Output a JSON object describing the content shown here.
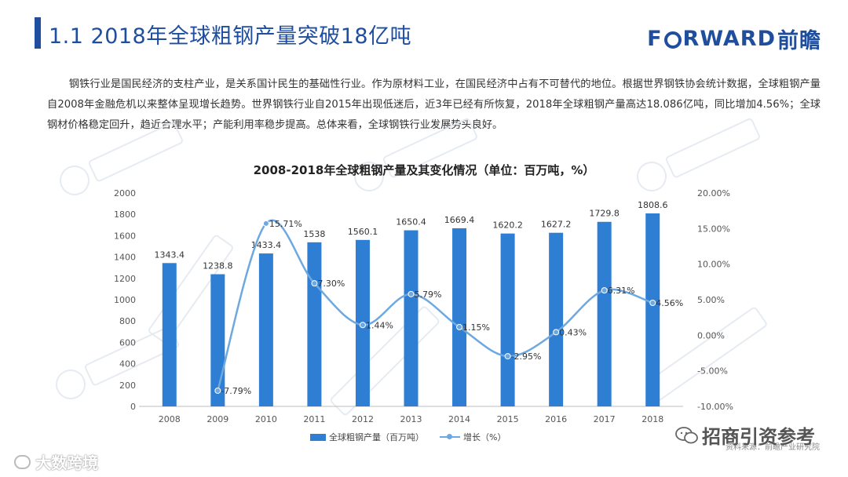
{
  "header": {
    "title": "1.1  2018年全球粗钢产量突破18亿吨",
    "logo_prefix": "F",
    "logo_suffix": "RWARD",
    "logo_cn": "前瞻"
  },
  "intro_text": "钢铁行业是国民经济的支柱产业，是关系国计民生的基础性行业。作为原材料工业，在国民经济中占有不可替代的地位。根据世界钢铁协会统计数据，全球粗钢产量自2008年金融危机以来整体呈现增长趋势。世界钢铁行业自2015年出现低迷后，近3年已经有所恢复，2018年全球粗钢产量高达18.086亿吨，同比增加4.56%；全球钢材价格稳定回升，趋近合理水平；产能利用率稳步提高。总体来看，全球钢铁行业发展势头良好。",
  "chart_data": {
    "type": "bar+line",
    "title": "2008-2018年全球粗钢产量及其变化情况（单位：百万吨，%）",
    "categories": [
      "2008",
      "2009",
      "2010",
      "2011",
      "2012",
      "2013",
      "2014",
      "2015",
      "2016",
      "2017",
      "2018"
    ],
    "series": [
      {
        "name": "全球粗钢产量（百万吨）",
        "type": "bar",
        "axis": "left",
        "values": [
          1343.4,
          1238.8,
          1433.4,
          1538,
          1560.1,
          1650.4,
          1669.4,
          1620.2,
          1627.2,
          1729.8,
          1808.6
        ],
        "labels": [
          "1343.4",
          "1238.8",
          "1433.4",
          "1538",
          "1560.1",
          "1650.4",
          "1669.4",
          "1620.2",
          "1627.2",
          "1729.8",
          "1808.6"
        ]
      },
      {
        "name": "增长（%）",
        "type": "line",
        "axis": "right",
        "values": [
          null,
          -7.79,
          15.71,
          7.3,
          1.44,
          5.79,
          1.15,
          -2.95,
          0.43,
          6.31,
          4.56
        ],
        "labels": [
          "",
          "-7.79%",
          "15.71%",
          "7.30%",
          "1.44%",
          "5.79%",
          "1.15%",
          "-2.95%",
          "0.43%",
          "6.31%",
          "4.56%"
        ]
      }
    ],
    "y_left": {
      "min": 0,
      "max": 2000,
      "step": 200,
      "ticks": [
        "0",
        "200",
        "400",
        "600",
        "800",
        "1000",
        "1200",
        "1400",
        "1600",
        "1800",
        "2000"
      ]
    },
    "y_right": {
      "min": -10,
      "max": 20,
      "step": 5,
      "ticks": [
        "-10.00%",
        "-5.00%",
        "0.00%",
        "5.00%",
        "10.00%",
        "15.00%",
        "20.00%"
      ]
    },
    "colors": {
      "bar": "#2e7fd3",
      "line": "#6ea8e0",
      "axis_text": "#555555",
      "label_text": "#333333"
    }
  },
  "legend": {
    "bar_label": "全球粗钢产量（百万吨）",
    "line_label": "增长（%）"
  },
  "source_text": "资料来源：前瞻产业研究院",
  "wechat_label": "招商引资参考",
  "bottom_watermark": "大数跨境",
  "bottom_watermark_icon": "K"
}
